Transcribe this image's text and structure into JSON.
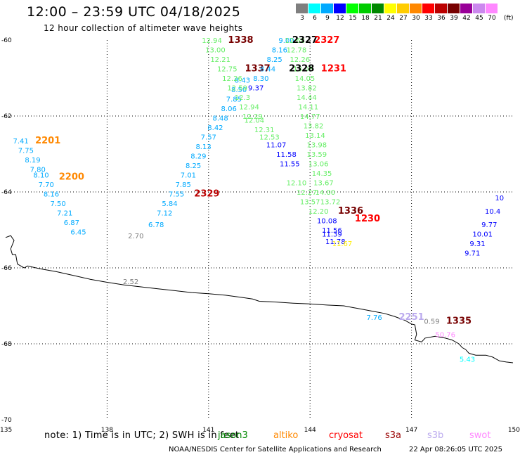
{
  "header": {
    "title": "12:00 – 23:59 UTC 04/18/2025",
    "subtitle": "12 hour collection of altimeter wave heights"
  },
  "legend": {
    "unit": "(ft)",
    "bins": [
      {
        "label": "3",
        "color": "#7f7f7f"
      },
      {
        "label": "6",
        "color": "#00ffff"
      },
      {
        "label": "9",
        "color": "#00aaff"
      },
      {
        "label": "12",
        "color": "#0000ff"
      },
      {
        "label": "15",
        "color": "#00ff00"
      },
      {
        "label": "18",
        "color": "#00cc00"
      },
      {
        "label": "21",
        "color": "#008800"
      },
      {
        "label": "24",
        "color": "#ffff00"
      },
      {
        "label": "27",
        "color": "#ffcc00"
      },
      {
        "label": "30",
        "color": "#ff8800"
      },
      {
        "label": "33",
        "color": "#ff0000"
      },
      {
        "label": "36",
        "color": "#bb0000"
      },
      {
        "label": "39",
        "color": "#770000"
      },
      {
        "label": "42",
        "color": "#990099"
      },
      {
        "label": "45",
        "color": "#cc88ee"
      },
      {
        "label": "70",
        "color": "#ff88ff"
      }
    ]
  },
  "note": {
    "text": "note: 1) Time is in UTC; 2) SWH is in feet",
    "satellites": [
      {
        "name": "jason3",
        "color": "#008800"
      },
      {
        "name": "altiko",
        "color": "#ff8800"
      },
      {
        "name": "cryosat",
        "color": "#ff0000"
      },
      {
        "name": "s3a",
        "color": "#990000"
      },
      {
        "name": "s3b",
        "color": "#bbaaee"
      },
      {
        "name": "swot",
        "color": "#ff88ff"
      }
    ]
  },
  "footer": {
    "credit": "NOAA/NESDIS Center for Satellite Applications and Research",
    "timestamp": "22 Apr 08:26:05 UTC 2025"
  },
  "chart_data": {
    "type": "scatter",
    "title": "12:00 – 23:59 UTC 04/18/2025",
    "subtitle": "12 hour collection of altimeter wave heights",
    "xlim": [
      135,
      150
    ],
    "ylim": [
      -70,
      -60
    ],
    "x_ticks": [
      "135",
      "138",
      "141",
      "144",
      "147",
      "150"
    ],
    "y_ticks": [
      "-70",
      "-68",
      "-66",
      "-64",
      "-62",
      "-60"
    ],
    "grid": true,
    "coastline": [
      [
        135.0,
        -65.2
      ],
      [
        135.15,
        -65.15
      ],
      [
        135.25,
        -65.28
      ],
      [
        135.15,
        -65.5
      ],
      [
        135.2,
        -65.65
      ],
      [
        135.3,
        -65.65
      ],
      [
        135.35,
        -65.9
      ],
      [
        135.55,
        -66.0
      ],
      [
        135.65,
        -65.95
      ],
      [
        136.0,
        -66.02
      ],
      [
        136.5,
        -66.1
      ],
      [
        137.0,
        -66.2
      ],
      [
        137.5,
        -66.3
      ],
      [
        138.0,
        -66.38
      ],
      [
        138.5,
        -66.45
      ],
      [
        139.0,
        -66.5
      ],
      [
        139.5,
        -66.55
      ],
      [
        140.0,
        -66.6
      ],
      [
        140.5,
        -66.65
      ],
      [
        141.0,
        -66.68
      ],
      [
        141.5,
        -66.72
      ],
      [
        142.0,
        -66.78
      ],
      [
        142.3,
        -66.82
      ],
      [
        142.5,
        -66.88
      ],
      [
        143.0,
        -66.9
      ],
      [
        143.5,
        -66.93
      ],
      [
        144.0,
        -66.95
      ],
      [
        144.5,
        -66.98
      ],
      [
        145.0,
        -67.0
      ],
      [
        145.3,
        -67.05
      ],
      [
        145.6,
        -67.1
      ],
      [
        145.9,
        -67.15
      ],
      [
        146.2,
        -67.2
      ],
      [
        146.5,
        -67.28
      ],
      [
        146.8,
        -67.38
      ],
      [
        147.0,
        -67.48
      ],
      [
        147.1,
        -67.5
      ],
      [
        147.15,
        -67.75
      ],
      [
        147.1,
        -67.9
      ],
      [
        147.3,
        -67.95
      ],
      [
        147.4,
        -67.85
      ],
      [
        147.7,
        -67.8
      ],
      [
        148.0,
        -67.85
      ],
      [
        148.2,
        -67.9
      ],
      [
        148.4,
        -68.0
      ],
      [
        148.5,
        -68.1
      ],
      [
        148.6,
        -68.15
      ],
      [
        148.7,
        -68.25
      ],
      [
        148.9,
        -68.3
      ],
      [
        149.2,
        -68.3
      ],
      [
        149.4,
        -68.35
      ],
      [
        149.6,
        -68.45
      ],
      [
        149.8,
        -68.48
      ],
      [
        150.0,
        -68.5
      ]
    ],
    "points": [
      {
        "x": 135.45,
        "y": -62.65,
        "label": "7.41",
        "color": "#00aaff"
      },
      {
        "x": 135.6,
        "y": -62.9,
        "label": "7.75",
        "color": "#00aaff"
      },
      {
        "x": 135.8,
        "y": -63.15,
        "label": "8.19",
        "color": "#00aaff"
      },
      {
        "x": 135.95,
        "y": -63.4,
        "label": "7.80",
        "color": "#00aaff"
      },
      {
        "x": 136.05,
        "y": -63.55,
        "label": "8.10",
        "color": "#00aaff"
      },
      {
        "x": 136.2,
        "y": -63.8,
        "label": "7.70",
        "color": "#00aaff"
      },
      {
        "x": 136.35,
        "y": -64.05,
        "label": "8.16",
        "color": "#00aaff"
      },
      {
        "x": 136.55,
        "y": -64.3,
        "label": "7.50",
        "color": "#00aaff"
      },
      {
        "x": 136.75,
        "y": -64.55,
        "label": "7.21",
        "color": "#00aaff"
      },
      {
        "x": 136.95,
        "y": -64.8,
        "label": "6.87",
        "color": "#00aaff"
      },
      {
        "x": 137.15,
        "y": -65.05,
        "label": "6.45",
        "color": "#00aaff"
      },
      {
        "x": 136.25,
        "y": -62.65,
        "label": "2201",
        "color": "#ff8800"
      },
      {
        "x": 136.95,
        "y": -63.6,
        "label": "2200",
        "color": "#ff8800"
      },
      {
        "x": 138.85,
        "y": -65.15,
        "label": "2.70",
        "color": "#7f7f7f"
      },
      {
        "x": 138.7,
        "y": -66.35,
        "label": "2.52",
        "color": "#7f7f7f"
      },
      {
        "x": 139.45,
        "y": -64.85,
        "label": "6.78",
        "color": "#00aaff"
      },
      {
        "x": 139.7,
        "y": -64.55,
        "label": "7.12",
        "color": "#00aaff"
      },
      {
        "x": 139.85,
        "y": -64.3,
        "label": "5.84",
        "color": "#00aaff"
      },
      {
        "x": 140.05,
        "y": -64.05,
        "label": "7.55",
        "color": "#00aaff"
      },
      {
        "x": 140.25,
        "y": -63.8,
        "label": "7.85",
        "color": "#00aaff"
      },
      {
        "x": 140.4,
        "y": -63.55,
        "label": "7.01",
        "color": "#00aaff"
      },
      {
        "x": 140.55,
        "y": -63.3,
        "label": "8.25",
        "color": "#00aaff"
      },
      {
        "x": 140.7,
        "y": -63.05,
        "label": "8.29",
        "color": "#00aaff"
      },
      {
        "x": 140.85,
        "y": -62.8,
        "label": "8.13",
        "color": "#00aaff"
      },
      {
        "x": 141.0,
        "y": -62.55,
        "label": "7.57",
        "color": "#00aaff"
      },
      {
        "x": 141.2,
        "y": -62.3,
        "label": "8.42",
        "color": "#00aaff"
      },
      {
        "x": 141.35,
        "y": -62.05,
        "label": "8.48",
        "color": "#00aaff"
      },
      {
        "x": 141.6,
        "y": -61.8,
        "label": "8.06",
        "color": "#00aaff"
      },
      {
        "x": 141.75,
        "y": -61.55,
        "label": "7.85",
        "color": "#00aaff"
      },
      {
        "x": 141.9,
        "y": -61.3,
        "label": "8.50",
        "color": "#00aaff"
      },
      {
        "x": 142.0,
        "y": -61.05,
        "label": "8.43",
        "color": "#00aaff"
      },
      {
        "x": 140.95,
        "y": -64.05,
        "label": "2329",
        "color": "#bb0000"
      },
      {
        "x": 141.1,
        "y": -60.0,
        "label": "12.94",
        "color": "#66ee66"
      },
      {
        "x": 141.2,
        "y": -60.25,
        "label": "13.00",
        "color": "#66ee66"
      },
      {
        "x": 141.35,
        "y": -60.5,
        "label": "12.21",
        "color": "#66ee66"
      },
      {
        "x": 141.55,
        "y": -60.75,
        "label": "12.75",
        "color": "#66ee66"
      },
      {
        "x": 141.7,
        "y": -61.0,
        "label": "12.26",
        "color": "#66ee66"
      },
      {
        "x": 141.85,
        "y": -61.25,
        "label": "12.59",
        "color": "#66ee66"
      },
      {
        "x": 142.0,
        "y": -61.5,
        "label": "12.3",
        "color": "#66ee66"
      },
      {
        "x": 142.2,
        "y": -61.75,
        "label": "12.94",
        "color": "#66ee66"
      },
      {
        "x": 142.3,
        "y": -62.0,
        "label": "12.29",
        "color": "#66ee66"
      },
      {
        "x": 142.35,
        "y": -62.1,
        "label": "12.04",
        "color": "#66ee66"
      },
      {
        "x": 142.65,
        "y": -62.35,
        "label": "12.31",
        "color": "#66ee66"
      },
      {
        "x": 142.8,
        "y": -62.55,
        "label": "12.53",
        "color": "#66ee66"
      },
      {
        "x": 141.95,
        "y": -60.0,
        "label": "1338",
        "color": "#770000"
      },
      {
        "x": 142.45,
        "y": -60.75,
        "label": "1337",
        "color": "#770000"
      },
      {
        "x": 142.4,
        "y": -61.25,
        "label": "9.37",
        "color": "#0000ff"
      },
      {
        "x": 142.55,
        "y": -61.0,
        "label": "8.30",
        "color": "#00aaff"
      },
      {
        "x": 142.75,
        "y": -60.75,
        "label": "8.44",
        "color": "#00aaff"
      },
      {
        "x": 142.95,
        "y": -60.5,
        "label": "8.25",
        "color": "#00aaff"
      },
      {
        "x": 143.1,
        "y": -60.25,
        "label": "8.16",
        "color": "#00aaff"
      },
      {
        "x": 143.3,
        "y": -60.0,
        "label": "9.00",
        "color": "#00aaff"
      },
      {
        "x": 143.0,
        "y": -62.75,
        "label": "11.07",
        "color": "#0000ff"
      },
      {
        "x": 143.3,
        "y": -63.0,
        "label": "11.58",
        "color": "#0000ff"
      },
      {
        "x": 143.4,
        "y": -63.25,
        "label": "11.55",
        "color": "#0000ff"
      },
      {
        "x": 143.55,
        "y": -60.0,
        "label": "12.68",
        "color": "#66ee66"
      },
      {
        "x": 143.6,
        "y": -60.25,
        "label": "12.78",
        "color": "#66ee66"
      },
      {
        "x": 143.7,
        "y": -60.5,
        "label": "12.26",
        "color": "#66ee66"
      },
      {
        "x": 143.8,
        "y": -60.75,
        "label": "13.03",
        "color": "#66ee66"
      },
      {
        "x": 143.85,
        "y": -61.0,
        "label": "14.05",
        "color": "#66ee66"
      },
      {
        "x": 143.9,
        "y": -61.25,
        "label": "13.82",
        "color": "#66ee66"
      },
      {
        "x": 143.9,
        "y": -61.5,
        "label": "14.44",
        "color": "#66ee66"
      },
      {
        "x": 143.95,
        "y": -61.75,
        "label": "14.11",
        "color": "#66ee66"
      },
      {
        "x": 144.0,
        "y": -62.0,
        "label": "14.77",
        "color": "#66ee66"
      },
      {
        "x": 144.1,
        "y": -62.25,
        "label": "13.82",
        "color": "#66ee66"
      },
      {
        "x": 144.15,
        "y": -62.5,
        "label": "13.14",
        "color": "#66ee66"
      },
      {
        "x": 144.2,
        "y": -62.75,
        "label": "13.98",
        "color": "#66ee66"
      },
      {
        "x": 144.2,
        "y": -63.0,
        "label": "13.59",
        "color": "#66ee66"
      },
      {
        "x": 144.25,
        "y": -63.25,
        "label": "13.06",
        "color": "#66ee66"
      },
      {
        "x": 144.35,
        "y": -63.5,
        "label": "14.35",
        "color": "#66ee66"
      },
      {
        "x": 144.4,
        "y": -63.75,
        "label": "13.67",
        "color": "#66ee66"
      },
      {
        "x": 143.6,
        "y": -63.75,
        "label": "12.10",
        "color": "#66ee66"
      },
      {
        "x": 143.9,
        "y": -64.0,
        "label": "12.27",
        "color": "#66ee66"
      },
      {
        "x": 144.45,
        "y": -64.0,
        "label": "14.00",
        "color": "#66ee66"
      },
      {
        "x": 144.0,
        "y": -64.25,
        "label": "13.57",
        "color": "#66ee66"
      },
      {
        "x": 144.6,
        "y": -64.25,
        "label": "13.72",
        "color": "#66ee66"
      },
      {
        "x": 144.25,
        "y": -64.5,
        "label": "12.20",
        "color": "#66ee66"
      },
      {
        "x": 143.85,
        "y": -60.0,
        "label": "2327",
        "color": "#000000"
      },
      {
        "x": 144.5,
        "y": -60.0,
        "label": "2327",
        "color": "#ff0000"
      },
      {
        "x": 143.75,
        "y": -60.75,
        "label": "2328",
        "color": "#000000"
      },
      {
        "x": 144.7,
        "y": -60.75,
        "label": "1231",
        "color": "#ff0000"
      },
      {
        "x": 145.2,
        "y": -64.5,
        "label": "1336",
        "color": "#770000"
      },
      {
        "x": 145.7,
        "y": -64.7,
        "label": "1230",
        "color": "#ff0000"
      },
      {
        "x": 144.5,
        "y": -64.75,
        "label": "10.08",
        "color": "#0000ff"
      },
      {
        "x": 144.65,
        "y": -65.0,
        "label": "11.56",
        "color": "#0000ff"
      },
      {
        "x": 144.65,
        "y": -65.1,
        "label": "11.39",
        "color": "#0000ff"
      },
      {
        "x": 144.75,
        "y": -65.3,
        "label": "11.78",
        "color": "#0000ff"
      },
      {
        "x": 144.95,
        "y": -65.35,
        "label": "11.67",
        "color": "#ffee00"
      },
      {
        "x": 149.6,
        "y": -64.15,
        "label": "10",
        "color": "#0000ff"
      },
      {
        "x": 149.4,
        "y": -64.5,
        "label": "10.4",
        "color": "#0000ff"
      },
      {
        "x": 149.3,
        "y": -64.85,
        "label": "9.77",
        "color": "#0000ff"
      },
      {
        "x": 149.1,
        "y": -65.1,
        "label": "10.01",
        "color": "#0000ff"
      },
      {
        "x": 148.95,
        "y": -65.35,
        "label": "9.31",
        "color": "#0000ff"
      },
      {
        "x": 148.8,
        "y": -65.6,
        "label": "9.71",
        "color": "#0000ff"
      },
      {
        "x": 145.9,
        "y": -67.3,
        "label": "7.76",
        "color": "#00aaff"
      },
      {
        "x": 147.0,
        "y": -67.3,
        "label": "2251",
        "color": "#bbaaee"
      },
      {
        "x": 147.6,
        "y": -67.4,
        "label": "0.59",
        "color": "#7f7f7f"
      },
      {
        "x": 148.4,
        "y": -67.4,
        "label": "1335",
        "color": "#770000"
      },
      {
        "x": 148.0,
        "y": -67.75,
        "label": "50.76",
        "color": "#ff88ff"
      },
      {
        "x": 148.65,
        "y": -68.4,
        "label": "5.43",
        "color": "#00ffff"
      }
    ]
  }
}
